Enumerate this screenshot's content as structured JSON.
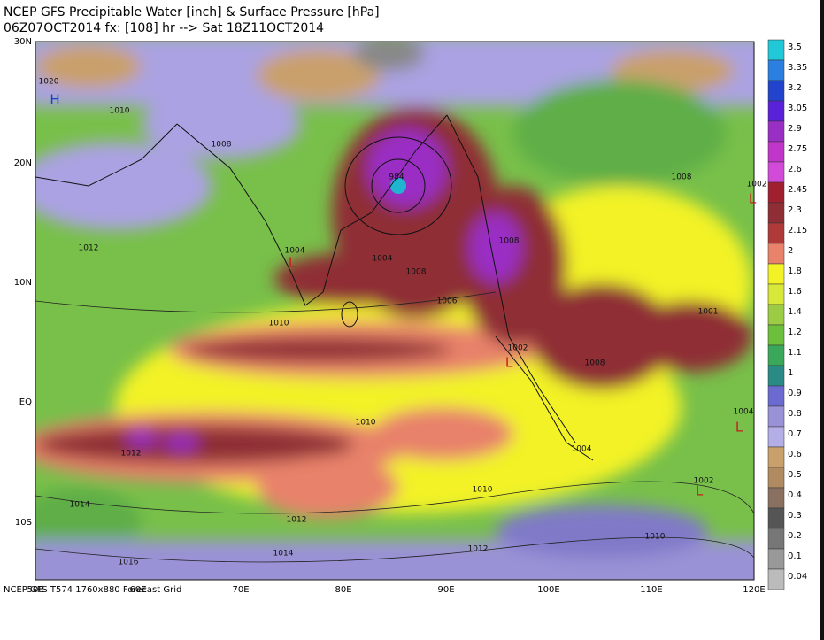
{
  "header": {
    "title": "NCEP GFS Precipitable Water [inch] & Surface Pressure [hPa]",
    "subtitle": "06Z07OCT2014 fx: [108] hr --> Sat 18Z11OCT2014"
  },
  "map": {
    "lat_labels": [
      "30N",
      "20N",
      "10N",
      "EQ",
      "10S"
    ],
    "lon_labels": [
      "50E",
      "60E",
      "70E",
      "80E",
      "90E",
      "100E",
      "110E",
      "120E"
    ],
    "isobar_labels": [
      "1020",
      "1010",
      "1008",
      "1012",
      "1004",
      "1004",
      "1008",
      "1008",
      "1006",
      "1010",
      "984",
      "1008",
      "1002",
      "1001",
      "1002",
      "1008",
      "1004",
      "1010",
      "1012",
      "1004",
      "1010",
      "1002",
      "1014",
      "1012",
      "1014",
      "1012",
      "1016",
      "1010"
    ],
    "centers": [
      "H",
      "L",
      "L",
      "L",
      "L",
      "L"
    ]
  },
  "colorbar": {
    "labels": [
      "3.5",
      "3.35",
      "3.2",
      "3.05",
      "2.9",
      "2.75",
      "2.6",
      "2.45",
      "2.3",
      "2.15",
      "2",
      "1.8",
      "1.6",
      "1.4",
      "1.2",
      "1.1",
      "1",
      "0.9",
      "0.8",
      "0.7",
      "0.6",
      "0.5",
      "0.4",
      "0.3",
      "0.2",
      "0.1",
      "0.04"
    ]
  },
  "footer": "NCEP GFS T574 1760x880 Forecast Grid"
}
